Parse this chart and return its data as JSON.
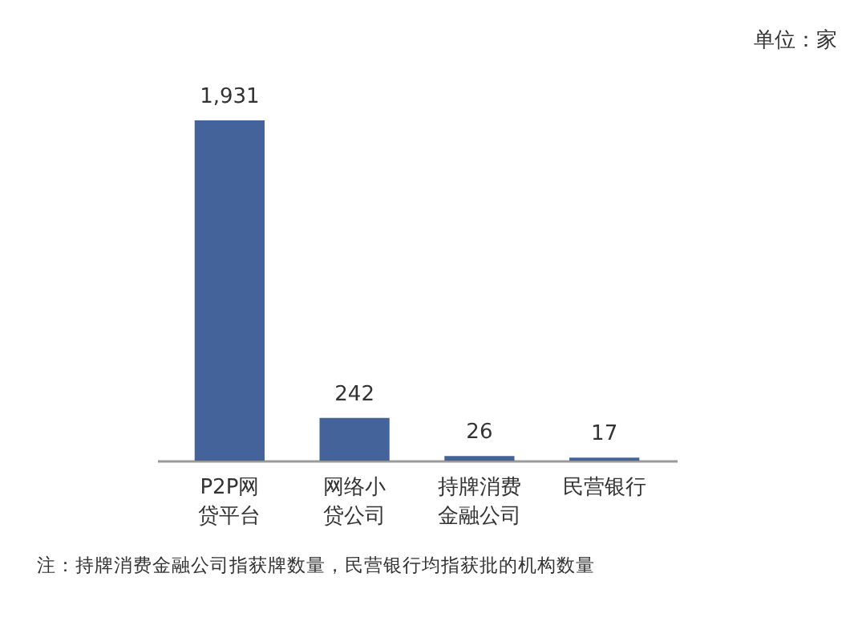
{
  "chart_data": {
    "type": "bar",
    "categories": [
      "P2P网贷平台",
      "网络小贷公司",
      "持牌消费金融公司",
      "民营银行"
    ],
    "values": [
      1931,
      242,
      26,
      17
    ],
    "value_labels": [
      "1,931",
      "242",
      "26",
      "17"
    ],
    "color": "#44639a",
    "annotations": [
      "单位：家",
      "注：持牌消费金融公司指获牌数量，民营银行均指获批的机构数量"
    ]
  }
}
